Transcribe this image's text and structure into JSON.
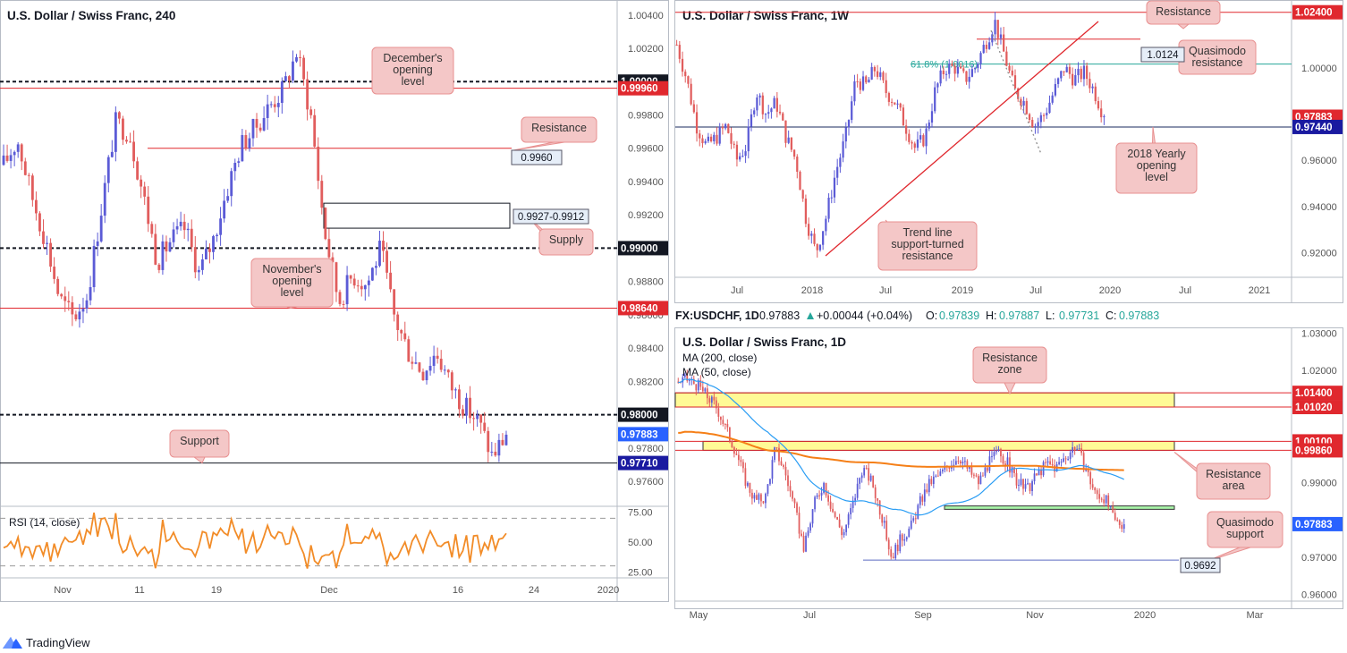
{
  "colors": {
    "candle_up": "#5b5bd6",
    "candle_down": "#e15d5d",
    "red_line": "#e0282e",
    "navy_line": "#1a2a5e",
    "callout_fill": "#f4c7c7",
    "callout_stroke": "#e89090",
    "zone_yellow": "#fffa96",
    "zone_green": "#a9f5a9",
    "rsi": "#f28c28",
    "ma200": "#f57f17",
    "ma50": "#2a9df4",
    "fib": "#26a69a"
  },
  "panel1": {
    "title": "U.S. Dollar / Swiss Franc, 240",
    "rsi_label": "RSI (14, close)",
    "x_ticks": [
      "Nov",
      "11",
      "19",
      "Dec",
      "16",
      "24",
      "2020"
    ],
    "y_ticks": [
      "1.00400",
      "1.00200",
      "0.99800",
      "0.99600",
      "0.99400",
      "0.99200",
      "0.98800",
      "0.98600",
      "0.98400",
      "0.98200",
      "0.97800",
      "0.97600"
    ],
    "rsi_ticks": [
      "75.00",
      "50.00",
      "25.00"
    ],
    "price_tags": [
      {
        "text": "1.00000",
        "style": "black"
      },
      {
        "text": "0.99960",
        "style": "red"
      },
      {
        "text": "0.99000",
        "style": "black"
      },
      {
        "text": "0.98640",
        "style": "red"
      },
      {
        "text": "0.98000",
        "style": "black"
      },
      {
        "text": "0.97883",
        "style": "blue"
      },
      {
        "text": "0.97710",
        "style": "navy"
      }
    ],
    "callouts": [
      "December's opening level",
      "Resistance",
      "Supply",
      "November's opening level",
      "Support"
    ],
    "boxed_labels": [
      "0.9960",
      "0.9927-0.9912"
    ]
  },
  "panel2": {
    "title": "U.S. Dollar / Swiss Franc, 1W",
    "x_ticks": [
      "Jul",
      "2018",
      "Jul",
      "2019",
      "Jul",
      "2020",
      "Jul",
      "2021"
    ],
    "y_ticks": [
      "1.00000",
      "0.96000",
      "0.94000",
      "0.92000"
    ],
    "price_tags": [
      {
        "text": "1.02400",
        "style": "red"
      },
      {
        "text": "0.97883",
        "style": "red"
      },
      {
        "text": "0.97440",
        "style": "navy"
      }
    ],
    "fib_label": "61.8% (1.0016)",
    "callouts": [
      "Resistance",
      "Quasimodo resistance",
      "2018 Yearly opening level",
      "Trend line support-turned resistance"
    ],
    "boxed_labels": [
      "1.0124"
    ]
  },
  "panel3": {
    "header": {
      "symbol": "FX:USDCHF, 1D",
      "last": "0.97883",
      "change": "+0.00044 (+0.04%)",
      "o_label": "O:",
      "o": "0.97839",
      "h_label": "H:",
      "h": "0.97887",
      "l_label": "L:",
      "l": "0.97731",
      "c_label": "C:",
      "c": "0.97883"
    },
    "title": "U.S. Dollar / Swiss Franc, 1D",
    "ma200_label": "MA (200, close)",
    "ma50_label": "MA (50, close)",
    "x_ticks": [
      "May",
      "Jul",
      "Sep",
      "Nov",
      "2020",
      "Mar"
    ],
    "y_ticks": [
      "1.03000",
      "1.02000",
      "0.99000",
      "0.97000",
      "0.96000"
    ],
    "price_tags": [
      {
        "text": "1.01400",
        "style": "red"
      },
      {
        "text": "1.01020",
        "style": "red"
      },
      {
        "text": "1.00100",
        "style": "red"
      },
      {
        "text": "0.99860",
        "style": "red"
      },
      {
        "text": "0.97883",
        "style": "blue"
      }
    ],
    "callouts": [
      "Resistance zone",
      "Resistance area",
      "Quasimodo support"
    ],
    "boxed_labels": [
      "0.9692"
    ]
  },
  "brand": "TradingView",
  "chart_data": [
    {
      "type": "candlestick",
      "title": "U.S. Dollar / Swiss Franc, 240",
      "ylim": [
        0.9745,
        1.0049
      ],
      "levels": [
        1.0,
        0.9996,
        0.996,
        0.99,
        0.9864,
        0.98,
        0.9771
      ],
      "zones": [
        {
          "name": "Supply",
          "from": 0.9912,
          "to": 0.9927
        }
      ],
      "last": 0.97883,
      "close_path": [
        0.995,
        0.9965,
        0.9932,
        0.9905,
        0.987,
        0.9858,
        0.9872,
        0.9924,
        0.9975,
        0.997,
        0.9932,
        0.9892,
        0.9905,
        0.9912,
        0.9885,
        0.9905,
        0.9935,
        0.9962,
        0.9972,
        0.9985,
        0.9995,
        1.0018,
        0.998,
        0.991,
        0.9868,
        0.9884,
        0.9878,
        0.99,
        0.9858,
        0.9838,
        0.9826,
        0.9838,
        0.9818,
        0.9805,
        0.9796,
        0.9775,
        0.9788
      ],
      "rsi": {
        "label": "RSI (14, close)",
        "ylim": [
          20,
          80
        ],
        "levels": [
          70,
          30
        ]
      }
    },
    {
      "type": "candlestick",
      "title": "U.S. Dollar / Swiss Franc, 1W",
      "ylim": [
        0.9094,
        1.0293
      ],
      "levels": [
        1.024,
        1.0124,
        1.0016,
        0.9744
      ],
      "last": 0.97883,
      "close_path": [
        1.01,
        0.995,
        0.975,
        0.966,
        0.97,
        0.975,
        0.96,
        0.966,
        0.99,
        0.98,
        0.985,
        0.97,
        0.96,
        0.935,
        0.92,
        0.935,
        0.955,
        0.97,
        0.995,
        0.992,
        1.0,
        0.99,
        0.985,
        0.975,
        0.965,
        0.97,
        0.99,
        1.0,
        1.0,
        0.995,
        1.0,
        1.01,
        1.02,
        1.005,
        0.99,
        0.985,
        0.975,
        0.98,
        0.99,
        1.0,
        0.995,
        0.998,
        0.99,
        0.979
      ]
    },
    {
      "type": "candlestick",
      "title": "U.S. Dollar / Swiss Franc, 1D",
      "ylim": [
        0.9582,
        1.0313
      ],
      "levels": [
        1.014,
        1.0102,
        1.001,
        0.9986,
        0.9692
      ],
      "zones": [
        {
          "name": "Resistance zone",
          "from": 1.0102,
          "to": 1.014
        },
        {
          "name": "Resistance area",
          "from": 0.9986,
          "to": 1.001
        },
        {
          "name": "Quasimodo support",
          "from": 0.9828,
          "to": 0.9837
        }
      ],
      "last": 0.97883,
      "series": [
        {
          "name": "MA (200, close)"
        },
        {
          "name": "MA (50, close)"
        }
      ],
      "close_path": [
        1.017,
        1.0175,
        1.016,
        1.013,
        1.01,
        1.004,
        0.998,
        0.99,
        0.985,
        0.986,
        0.999,
        0.993,
        0.983,
        0.972,
        0.984,
        0.99,
        0.982,
        0.976,
        0.984,
        0.994,
        0.99,
        0.981,
        0.97,
        0.975,
        0.978,
        0.985,
        0.99,
        0.992,
        0.995,
        0.997,
        0.993,
        0.99,
        0.995,
        0.998,
        0.995,
        0.99,
        0.988,
        0.992,
        0.995,
        0.994,
        0.997,
        1.0,
        0.994,
        0.987,
        0.986,
        0.9795,
        0.9788
      ]
    }
  ]
}
